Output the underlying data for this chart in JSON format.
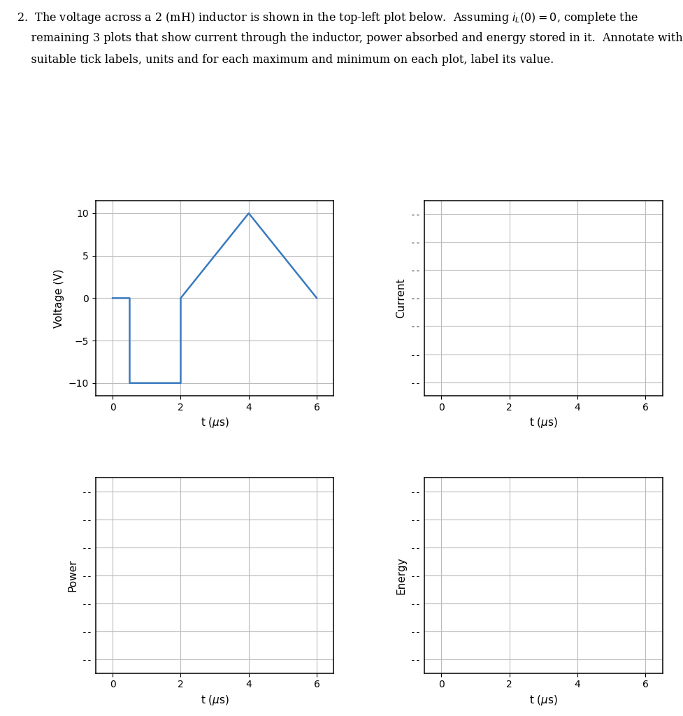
{
  "line1": "2.  The voltage across a 2 (mH) inductor is shown in the top-left plot below.  Assuming $i_L(0) = 0$, complete the",
  "line2": "    remaining 3 plots that show current through the inductor, power absorbed and energy stored in it.  Annotate with",
  "line3": "    suitable tick labels, units and for each maximum and minimum on each plot, label its value.",
  "t_us": [
    0,
    0.5,
    0.5,
    2,
    2,
    4,
    6
  ],
  "v_V": [
    0,
    0,
    -10,
    -10,
    0,
    10,
    0
  ],
  "voltage_yticks": [
    -10,
    -5,
    0,
    5,
    10
  ],
  "voltage_ylim": [
    -11.5,
    11.5
  ],
  "xlim": [
    -0.5,
    6.5
  ],
  "xticks": [
    0,
    2,
    4,
    6
  ],
  "xlabel": "t ($\\mu$s)",
  "ylabel_voltage": "Voltage (V)",
  "ylabel_current": "Current",
  "ylabel_power": "Power",
  "ylabel_energy": "Energy",
  "line_color": "#3a7abf",
  "line_width": 1.8,
  "grid_color": "#bbbbbb",
  "grid_linewidth": 0.8,
  "blank_n_ticks": 7,
  "fig_width": 9.77,
  "fig_height": 10.24,
  "title_fontsize": 11.5,
  "axis_label_fontsize": 11,
  "tick_label_fontsize": 10,
  "dash_label": "--"
}
